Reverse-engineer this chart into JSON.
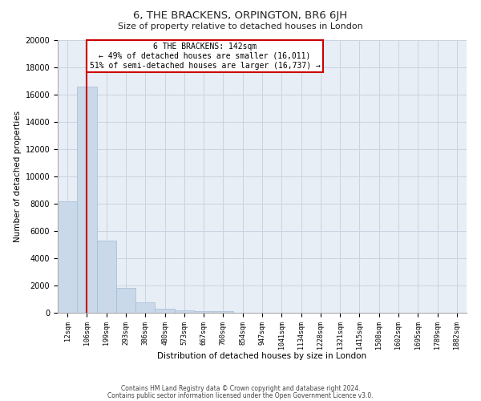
{
  "title": "6, THE BRACKENS, ORPINGTON, BR6 6JH",
  "subtitle": "Size of property relative to detached houses in London",
  "xlabel": "Distribution of detached houses by size in London",
  "ylabel": "Number of detached properties",
  "bar_labels": [
    "12sqm",
    "106sqm",
    "199sqm",
    "293sqm",
    "386sqm",
    "480sqm",
    "573sqm",
    "667sqm",
    "760sqm",
    "854sqm",
    "947sqm",
    "1041sqm",
    "1134sqm",
    "1228sqm",
    "1321sqm",
    "1415sqm",
    "1508sqm",
    "1602sqm",
    "1695sqm",
    "1789sqm",
    "1882sqm"
  ],
  "bar_heights": [
    8200,
    16600,
    5300,
    1800,
    750,
    300,
    200,
    100,
    100,
    0,
    0,
    0,
    0,
    0,
    0,
    0,
    0,
    0,
    0,
    0,
    0
  ],
  "bar_color": "#c9d9ea",
  "bar_edge_color": "#a0bcd4",
  "vline_x": 1,
  "vline_color": "#cc0000",
  "ylim": [
    0,
    20000
  ],
  "yticks": [
    0,
    2000,
    4000,
    6000,
    8000,
    10000,
    12000,
    14000,
    16000,
    18000,
    20000
  ],
  "annotation_title": "6 THE BRACKENS: 142sqm",
  "annotation_line1": "← 49% of detached houses are smaller (16,011)",
  "annotation_line2": "51% of semi-detached houses are larger (16,737) →",
  "footer_line1": "Contains HM Land Registry data © Crown copyright and database right 2024.",
  "footer_line2": "Contains public sector information licensed under the Open Government Licence v3.0.",
  "bg_color": "#ffffff",
  "plot_bg_color": "#e8eef5",
  "grid_color": "#c8d4e0",
  "annotation_box_color": "#ffffff",
  "annotation_box_edge": "#cc0000"
}
